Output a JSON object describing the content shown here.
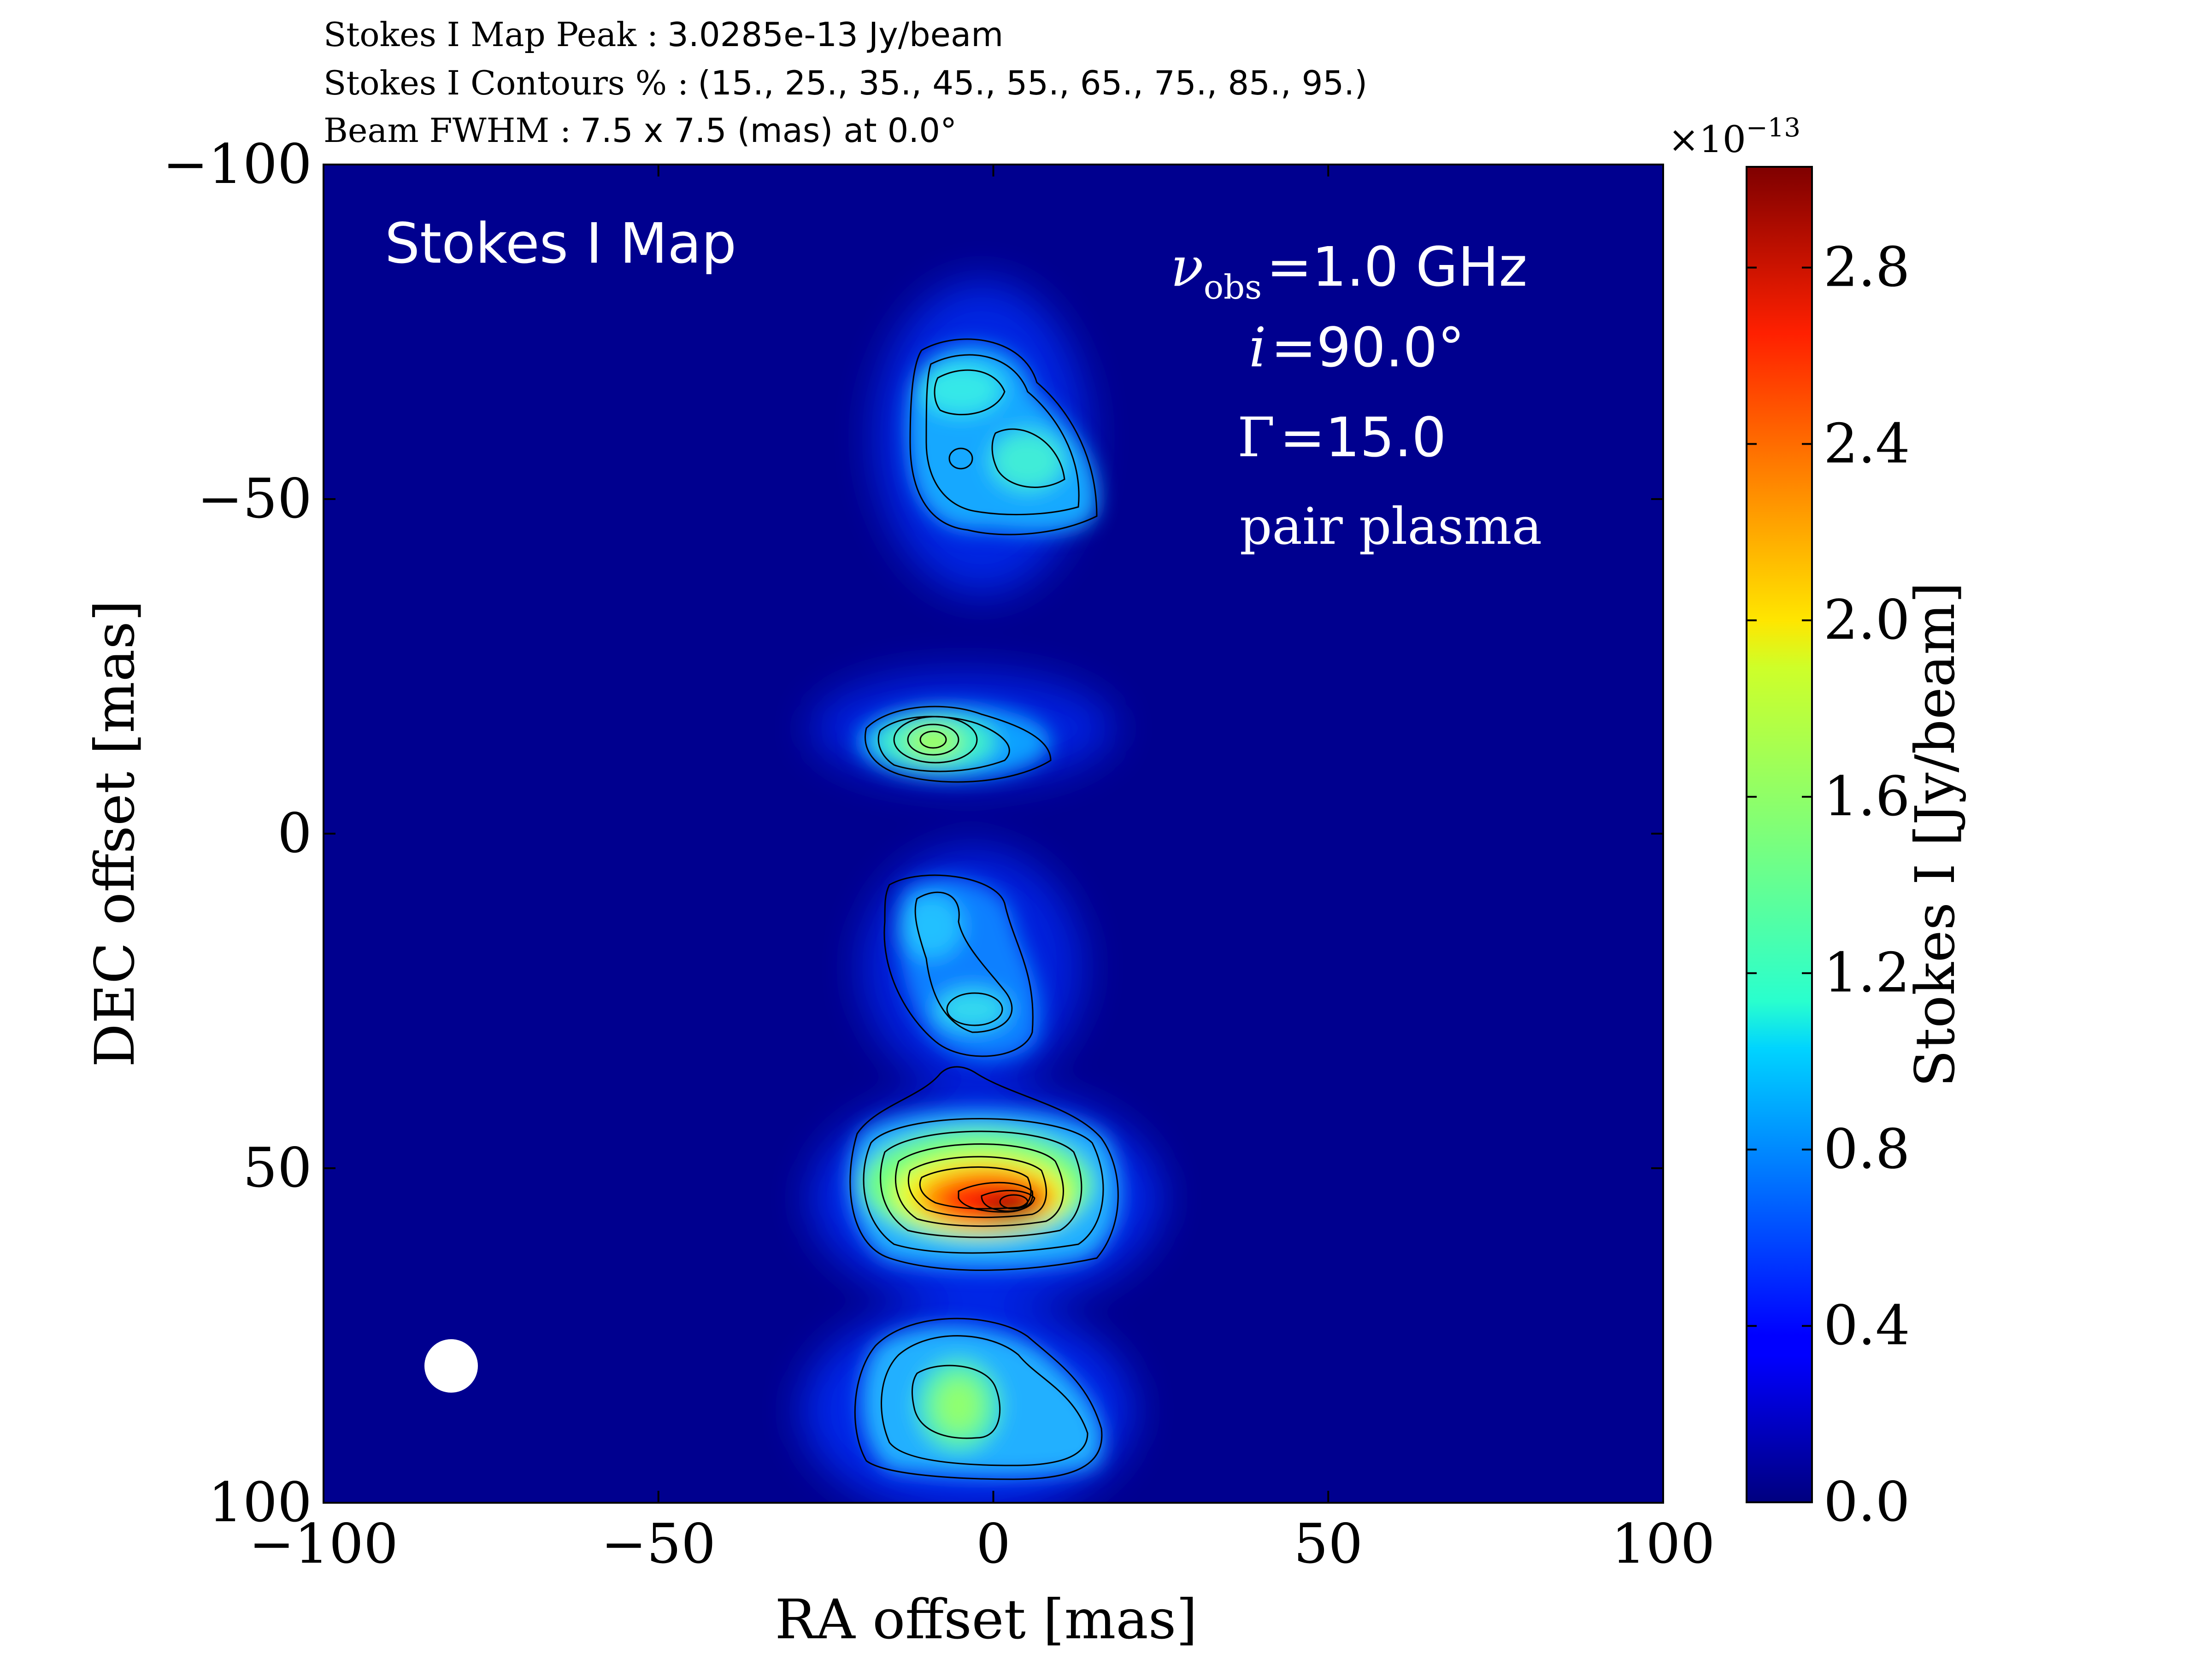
{
  "header": {
    "peak_label": "Stokes I Map Peak :",
    "peak_value": "3.0285e-13 Jy/beam",
    "contours_label": "Stokes I Contours % :",
    "contours_value": "(15., 25., 35., 45., 55., 65., 75., 85., 95.)",
    "beam_label": "Beam FWHM :",
    "beam_value": "7.5 x 7.5 (mas) at 0.0°"
  },
  "panel": {
    "map_title": "Stokes I Map",
    "nu_symbol": "ν",
    "nu_subscript": "obs",
    "nu_value": "=1.0 GHz",
    "inc_symbol": "i",
    "inc_value": "=90.0°",
    "gamma_symbol": "Γ",
    "gamma_value": "=15.0",
    "plasma": "pair plasma"
  },
  "colorbar": {
    "exponent_base": "×10",
    "exponent_power": "−13",
    "label": "Stokes I [Jy/beam]",
    "ticks": [
      "0.0",
      "0.4",
      "0.8",
      "1.2",
      "1.6",
      "2.0",
      "2.4",
      "2.8"
    ],
    "range": [
      0.0,
      3.0285
    ],
    "colormap": "jet"
  },
  "colors": {
    "background_blue": "#00008f",
    "contour": "#000000",
    "beam_fill": "#ffffff"
  },
  "chart_data": {
    "type": "heatmap",
    "xlabel": "RA offset [mas]",
    "ylabel": "DEC offset [mas]",
    "xlim": [
      -100,
      100
    ],
    "ylim": [
      -100,
      100
    ],
    "y_inverted": true,
    "xticks": [
      "−100",
      "−50",
      "0",
      "50",
      "100"
    ],
    "yticks": [
      "−100",
      "−50",
      "0",
      "50",
      "100"
    ],
    "xtick_values": [
      -100,
      -50,
      0,
      50,
      100
    ],
    "ytick_values": [
      -100,
      -50,
      0,
      50,
      100
    ],
    "peak_jy_per_beam": 3.0285e-13,
    "contour_levels_percent": [
      15,
      25,
      35,
      45,
      55,
      65,
      75,
      85,
      95
    ],
    "beam": {
      "ra": -80,
      "dec": 80,
      "fwhm_mas": 7.5,
      "pa_deg": 0.0
    },
    "components": [
      {
        "ra": 4,
        "dec": 56,
        "peak_1e13": 3.03
      },
      {
        "ra": -7,
        "dec": 56,
        "peak_1e13": 2.5
      },
      {
        "ra": -8,
        "dec": 14,
        "peak_1e13": 1.55
      },
      {
        "ra": 8,
        "dec": -56,
        "peak_1e13": 1.2
      },
      {
        "ra": -5,
        "dec": -67,
        "peak_1e13": 1.15
      },
      {
        "ra": -3,
        "dec": 26,
        "peak_1e13": 0.95
      },
      {
        "ra": -7,
        "dec": 14,
        "peak_1e13": 0.85
      },
      {
        "ra": -4,
        "dec": 86,
        "peak_1e13": 1.3
      }
    ]
  }
}
